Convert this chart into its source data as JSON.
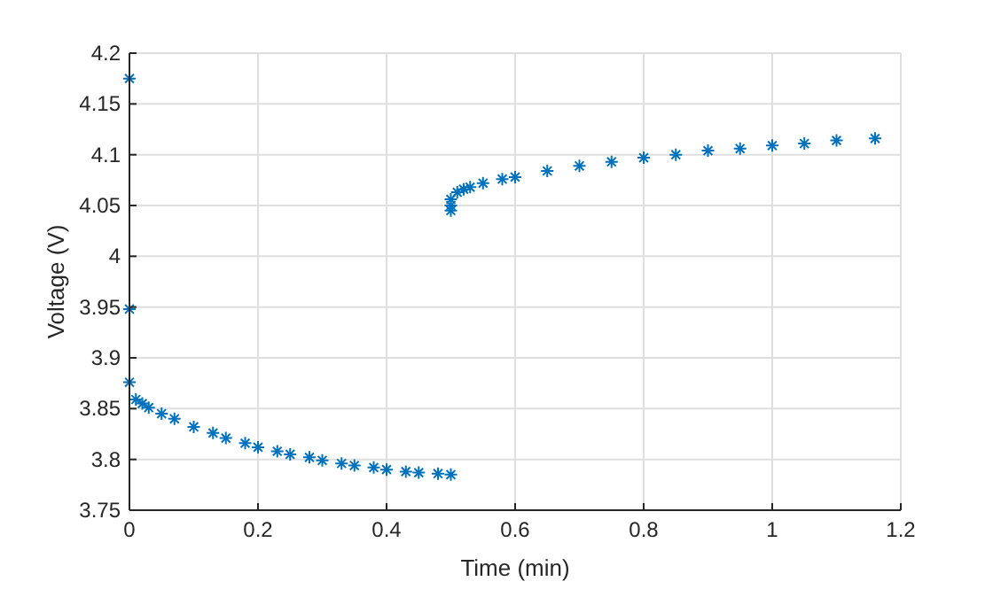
{
  "chart_data": {
    "type": "scatter",
    "xlabel": "Time (min)",
    "ylabel": "Voltage (V)",
    "marker": "cross",
    "grid": true,
    "xlim": [
      0,
      1.2
    ],
    "ylim": [
      3.75,
      4.2
    ],
    "xticks": [
      0,
      0.2,
      0.4,
      0.6,
      0.8,
      1,
      1.2
    ],
    "yticks": [
      3.75,
      3.8,
      3.85,
      3.9,
      3.95,
      4,
      4.05,
      4.1,
      4.15,
      4.2
    ],
    "series": [
      {
        "color": "#0072bd",
        "x": [
          0,
          0,
          0,
          0.01,
          0.02,
          0.03,
          0.05,
          0.07,
          0.1,
          0.13,
          0.15,
          0.18,
          0.2,
          0.23,
          0.25,
          0.28,
          0.3,
          0.33,
          0.35,
          0.38,
          0.4,
          0.43,
          0.45,
          0.48,
          0.5,
          0.5,
          0.5,
          0.5,
          0.51,
          0.52,
          0.53,
          0.55,
          0.58,
          0.6,
          0.65,
          0.7,
          0.75,
          0.8,
          0.85,
          0.9,
          0.95,
          1,
          1.05,
          1.1,
          1.16
        ],
        "values": [
          4.175,
          3.948,
          3.876,
          3.859,
          3.855,
          3.851,
          3.845,
          3.84,
          3.832,
          3.826,
          3.821,
          3.816,
          3.812,
          3.808,
          3.805,
          3.802,
          3.799,
          3.796,
          3.794,
          3.792,
          3.79,
          3.788,
          3.787,
          3.786,
          3.785,
          4.045,
          4.05,
          4.056,
          4.063,
          4.066,
          4.068,
          4.072,
          4.076,
          4.078,
          4.084,
          4.089,
          4.093,
          4.097,
          4.1,
          4.104,
          4.106,
          4.109,
          4.111,
          4.114,
          4.116
        ]
      }
    ]
  }
}
